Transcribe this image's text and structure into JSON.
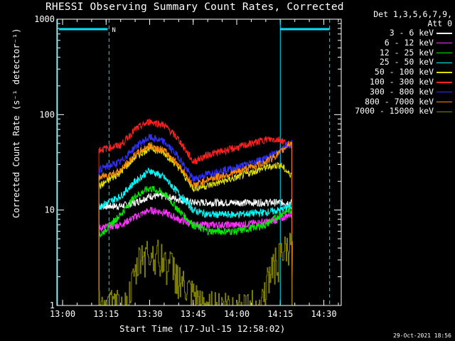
{
  "chart_data": {
    "type": "line",
    "title": "RHESSI Observing Summary Count Rates, Corrected",
    "xlabel": "Start Time (17-Jul-15 12:58:02)",
    "ylabel": "Corrected Count Rate (s⁻¹ detector⁻¹)",
    "yscale": "log",
    "ylim": [
      1,
      1000
    ],
    "xlim": [
      "12:58:02",
      "14:36:00"
    ],
    "x_ticks": [
      "13:00",
      "13:15",
      "13:30",
      "13:45",
      "14:00",
      "14:15",
      "14:30"
    ],
    "y_ticks": [
      "1",
      "10",
      "100",
      "1000"
    ],
    "legend_title": [
      "Det 1,3,5,6,7,9,",
      "Att 0"
    ],
    "legend_position": "right-outside",
    "flag_label": "N",
    "timestamp": "29-Oct-2021 18:56",
    "data_window": [
      "13:12:30",
      "14:19:00"
    ],
    "series": [
      {
        "name": "3 - 6 keV",
        "color": "#ffffff",
        "x": [
          "13:13",
          "13:20",
          "13:25",
          "13:30",
          "13:35",
          "13:40",
          "13:45",
          "13:50",
          "14:00",
          "14:10",
          "14:15",
          "14:18"
        ],
        "values": [
          11,
          11,
          12,
          14,
          14,
          13,
          12,
          12,
          12,
          12,
          12,
          12
        ]
      },
      {
        "name": "6 - 12 keV",
        "color": "#ff33ff",
        "x": [
          "13:13",
          "13:20",
          "13:25",
          "13:30",
          "13:35",
          "13:40",
          "13:45",
          "13:50",
          "14:00",
          "14:10",
          "14:15",
          "14:18"
        ],
        "values": [
          6.5,
          7,
          8.5,
          10,
          9.5,
          8,
          7,
          7,
          7,
          7.5,
          8,
          9
        ]
      },
      {
        "name": "12 - 25 keV",
        "color": "#00ee00",
        "x": [
          "13:13",
          "13:20",
          "13:25",
          "13:30",
          "13:35",
          "13:40",
          "13:45",
          "13:50",
          "14:00",
          "14:10",
          "14:15",
          "14:18"
        ],
        "values": [
          5.5,
          9,
          14,
          17,
          15,
          10,
          7,
          6,
          6,
          7,
          9,
          10
        ]
      },
      {
        "name": "25 - 50 keV",
        "color": "#00ffff",
        "x": [
          "13:13",
          "13:20",
          "13:25",
          "13:30",
          "13:35",
          "13:40",
          "13:45",
          "13:50",
          "14:00",
          "14:10",
          "14:15",
          "14:18"
        ],
        "values": [
          11,
          14,
          20,
          26,
          22,
          15,
          10,
          9,
          9,
          9.5,
          10,
          11
        ]
      },
      {
        "name": "50 - 100 keV",
        "color": "#e0e000",
        "x": [
          "13:13",
          "13:20",
          "13:25",
          "13:30",
          "13:35",
          "13:40",
          "13:45",
          "13:50",
          "14:00",
          "14:10",
          "14:15",
          "14:18"
        ],
        "values": [
          18,
          25,
          36,
          45,
          40,
          28,
          17,
          18,
          22,
          28,
          30,
          24
        ]
      },
      {
        "name": "100 - 300 keV",
        "color": "#ff2020",
        "x": [
          "13:13",
          "13:20",
          "13:25",
          "13:30",
          "13:35",
          "13:40",
          "13:45",
          "13:50",
          "14:00",
          "14:10",
          "14:15",
          "14:18"
        ],
        "values": [
          43,
          48,
          70,
          85,
          78,
          55,
          32,
          38,
          45,
          55,
          55,
          48
        ]
      },
      {
        "name": "300 - 800 keV",
        "color": "#3030ff",
        "x": [
          "13:13",
          "13:20",
          "13:25",
          "13:30",
          "13:35",
          "13:40",
          "13:45",
          "13:50",
          "14:00",
          "14:10",
          "14:15",
          "14:18"
        ],
        "values": [
          27,
          32,
          46,
          58,
          52,
          36,
          21,
          24,
          28,
          35,
          42,
          50
        ]
      },
      {
        "name": "800 - 7000 keV",
        "color": "#ff8c00",
        "x": [
          "13:13",
          "13:20",
          "13:25",
          "13:30",
          "13:35",
          "13:40",
          "13:45",
          "13:50",
          "14:00",
          "14:10",
          "14:15",
          "14:18"
        ],
        "values": [
          22,
          26,
          38,
          48,
          42,
          30,
          18,
          21,
          25,
          32,
          40,
          50
        ]
      },
      {
        "name": "7000 - 15000 keV",
        "color": "#808000",
        "x": [
          "13:14",
          "13:22",
          "13:27",
          "13:32",
          "13:38",
          "13:42",
          "13:48",
          "14:00",
          "14:08",
          "14:12",
          "14:16",
          "14:18"
        ],
        "values": [
          1,
          1,
          3.5,
          3.5,
          2.5,
          1.5,
          1,
          1,
          1,
          2.5,
          3.5,
          4
        ]
      }
    ]
  }
}
